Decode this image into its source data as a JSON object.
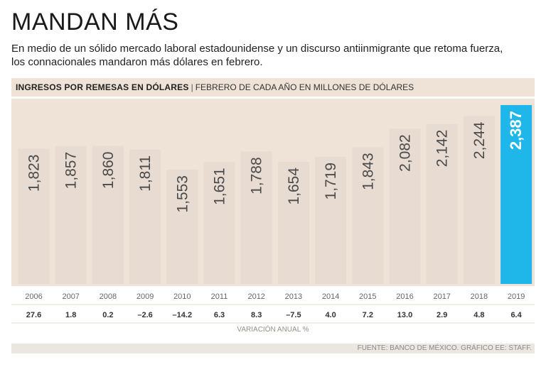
{
  "title": "MANDAN MÁS",
  "subtitle_lines": [
    "En medio de un sólido mercado laboral estadounidense y un discurso antiinmigrante que retoma fuerza,",
    "los connacionales mandaron más dólares en febrero."
  ],
  "chart_heading": {
    "bold": "INGRESOS POR REMESAS EN DÓLARES",
    "separator": "|",
    "normal": "FEBRERO DE CADA AÑO EN MILLONES DE DÓLARES"
  },
  "variation_label": "VARIACIÓN ANUAL %",
  "source": "FUENTE: BANCO DE MÉXICO. GRÁFICO EE: STAFF.",
  "colors": {
    "bar": "#e7dbd2",
    "highlight": "#1fb6ea",
    "bar_text": "#4a4a4a",
    "highlight_text": "#ffffff",
    "band": "#efe3d8"
  },
  "chart_data": {
    "type": "bar",
    "categories": [
      "2006",
      "2007",
      "2008",
      "2009",
      "2010",
      "2011",
      "2012",
      "2013",
      "2014",
      "2015",
      "2016",
      "2017",
      "2018",
      "2019"
    ],
    "values": [
      1823,
      1857,
      1860,
      1811,
      1553,
      1651,
      1788,
      1654,
      1719,
      1843,
      2082,
      2142,
      2244,
      2387
    ],
    "value_labels": [
      "1,823",
      "1,857",
      "1,860",
      "1,811",
      "1,553",
      "1,651",
      "1,788",
      "1,654",
      "1,719",
      "1,843",
      "2,082",
      "2,142",
      "2,244",
      "2,387"
    ],
    "annual_variation": [
      "27.6",
      "1.8",
      "0.2",
      "–2.6",
      "–14.2",
      "6.3",
      "8.3",
      "–7.5",
      "4.0",
      "7.2",
      "13.0",
      "2.9",
      "4.8",
      "6.4"
    ],
    "highlight_category": "2019",
    "title": "INGRESOS POR REMESAS EN DÓLARES",
    "ylabel": "Millones de dólares",
    "ylim": [
      0,
      2387
    ]
  }
}
